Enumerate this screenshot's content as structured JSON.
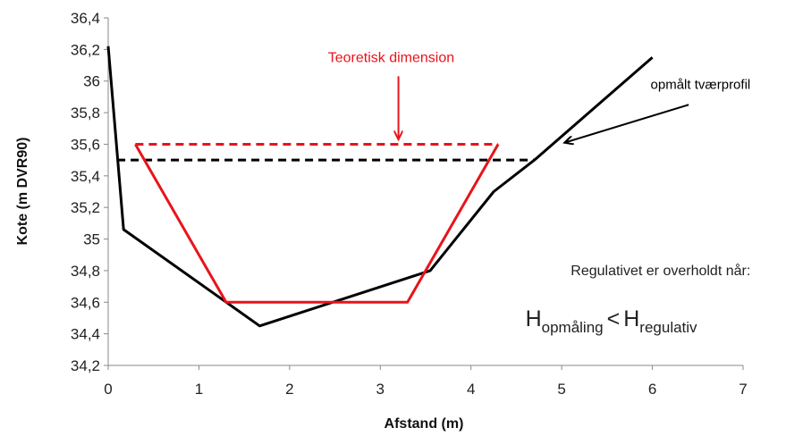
{
  "chart_data": {
    "type": "line",
    "xlabel": "Afstand (m)",
    "ylabel": "Kote (m DVR90)",
    "xlim": [
      0,
      7
    ],
    "ylim": [
      34.2,
      36.4
    ],
    "x_ticks": [
      "0",
      "1",
      "2",
      "3",
      "4",
      "5",
      "6",
      "7"
    ],
    "y_ticks": [
      "34,2",
      "34,4",
      "34,6",
      "34,8",
      "35",
      "35,2",
      "35,4",
      "35,6",
      "35,8",
      "36",
      "36,2",
      "36,4"
    ],
    "grid": false,
    "series": [
      {
        "style": "solid",
        "color": "#000000",
        "x": [
          0,
          0.17,
          1.67,
          3.55,
          4.25,
          4.7,
          6.0
        ],
        "y": [
          36.22,
          35.06,
          34.45,
          34.8,
          35.3,
          35.5,
          36.15
        ]
      },
      {
        "style": "solid",
        "color": "#e8141b",
        "x": [
          0.3,
          1.3,
          3.3,
          4.3
        ],
        "y": [
          35.6,
          34.6,
          34.6,
          35.6
        ]
      },
      {
        "style": "dashed",
        "color": "#e8141b",
        "x": [
          0.3,
          4.3
        ],
        "y": [
          35.6,
          35.6
        ]
      },
      {
        "style": "dashed",
        "color": "#000000",
        "x": [
          0.1,
          4.7
        ],
        "y": [
          35.5,
          35.5
        ]
      }
    ],
    "annotations": {
      "teoretisk": {
        "text": "Teoretisk dimension",
        "color": "#e8141b",
        "text_at": [
          3.12,
          36.12
        ],
        "arrow_from": [
          3.2,
          36.03
        ],
        "arrow_to": [
          3.2,
          35.63
        ]
      },
      "opmaalt": {
        "text": "opmålt tværprofil",
        "color": "#000000",
        "text_at": [
          5.98,
          35.95
        ],
        "arrow_from": [
          6.4,
          35.85
        ],
        "arrow_to": [
          5.03,
          35.61
        ]
      },
      "regulativ": {
        "line1": "Regulativet er overholdt når:",
        "H": "H",
        "sub1": "opmåling",
        "lt": "<",
        "sub2": "regulativ",
        "text_at": [
          5.1,
          34.77
        ],
        "formula_at": [
          4.6,
          34.45
        ]
      }
    }
  }
}
